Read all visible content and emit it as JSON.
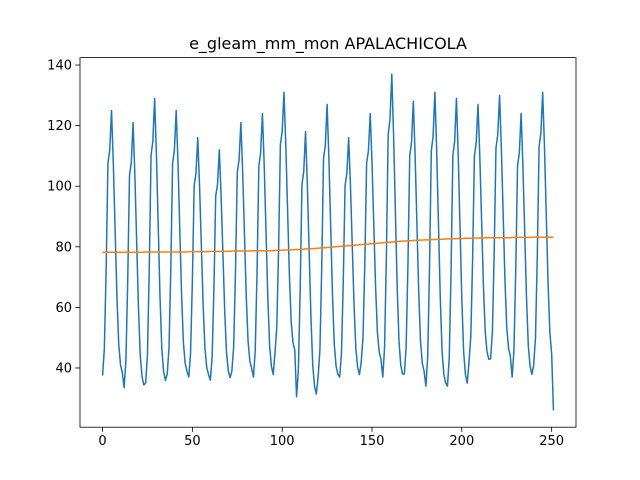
{
  "chart_data": {
    "type": "line",
    "title": "e_gleam_mm_mon APALACHICOLA",
    "x": [
      0,
      1,
      2,
      3,
      4,
      5,
      6,
      7,
      8,
      9,
      10,
      11,
      12,
      13,
      14,
      15,
      16,
      17,
      18,
      19,
      20,
      21,
      22,
      23,
      24,
      25,
      26,
      27,
      28,
      29,
      30,
      31,
      32,
      33,
      34,
      35,
      36,
      37,
      38,
      39,
      40,
      41,
      42,
      43,
      44,
      45,
      46,
      47,
      48,
      49,
      50,
      51,
      52,
      53,
      54,
      55,
      56,
      57,
      58,
      59,
      60,
      61,
      62,
      63,
      64,
      65,
      66,
      67,
      68,
      69,
      70,
      71,
      72,
      73,
      74,
      75,
      76,
      77,
      78,
      79,
      80,
      81,
      82,
      83,
      84,
      85,
      86,
      87,
      88,
      89,
      90,
      91,
      92,
      93,
      94,
      95,
      96,
      97,
      98,
      99,
      100,
      101,
      102,
      103,
      104,
      105,
      106,
      107,
      108,
      109,
      110,
      111,
      112,
      113,
      114,
      115,
      116,
      117,
      118,
      119,
      120,
      121,
      122,
      123,
      124,
      125,
      126,
      127,
      128,
      129,
      130,
      131,
      132,
      133,
      134,
      135,
      136,
      137,
      138,
      139,
      140,
      141,
      142,
      143,
      144,
      145,
      146,
      147,
      148,
      149,
      150,
      151,
      152,
      153,
      154,
      155,
      156,
      157,
      158,
      159,
      160,
      161,
      162,
      163,
      164,
      165,
      166,
      167,
      168,
      169,
      170,
      171,
      172,
      173,
      174,
      175,
      176,
      177,
      178,
      179,
      180,
      181,
      182,
      183,
      184,
      185,
      186,
      187,
      188,
      189,
      190,
      191,
      192,
      193,
      194,
      195,
      196,
      197,
      198,
      199,
      200,
      201,
      202,
      203,
      204,
      205,
      206,
      207,
      208,
      209,
      210,
      211,
      212,
      213,
      214,
      215,
      216,
      217,
      218,
      219,
      220,
      221,
      222,
      223,
      224,
      225,
      226,
      227,
      228,
      229,
      230,
      231,
      232,
      233,
      234,
      235,
      236,
      237,
      238,
      239,
      240,
      241,
      242,
      243,
      244,
      245,
      246,
      247,
      248,
      249,
      250,
      251
    ],
    "series": [
      {
        "color": "#1f77b4",
        "values": [
          37.5,
          46.3,
          72.5,
          107.5,
          111.9,
          125,
          107.5,
          85.6,
          63.8,
          48.0,
          41.0,
          38.4,
          33.5,
          42.3,
          68.5,
          103.5,
          107.9,
          121,
          103.5,
          81.6,
          59.8,
          44.0,
          37.0,
          34.4,
          35,
          44.4,
          72.6,
          110.2,
          114.9,
          129,
          110.2,
          86.7,
          63.2,
          46.3,
          38.8,
          35.9,
          38,
          46.7,
          72.8,
          107.6,
          112,
          125,
          107.6,
          85.9,
          64.1,
          48.4,
          41.5,
          38.9,
          37,
          44.9,
          68.6,
          100.2,
          104.2,
          116,
          100.2,
          80.5,
          60.7,
          46.5,
          40.2,
          37.8,
          36,
          43.6,
          66.4,
          96.8,
          100.6,
          112,
          96.8,
          77.8,
          58.8,
          45.1,
          39.0,
          36.8,
          39,
          47.2,
          71.8,
          104.6,
          108.7,
          121,
          104.6,
          84.1,
          63.6,
          48.8,
          42.3,
          39.8,
          37,
          45.7,
          71.8,
          106.6,
          111,
          124,
          106.6,
          84.9,
          63.1,
          47.4,
          40.5,
          37.9,
          45,
          53.6,
          79.4,
          113.8,
          118.1,
          131,
          113.8,
          92.3,
          70.8,
          55.3,
          48.4,
          45.9,
          30.5,
          39.3,
          65.5,
          100.5,
          104.9,
          118,
          100.5,
          78.6,
          56.8,
          41,
          34,
          31.4,
          37,
          46,
          73,
          109,
          113.5,
          127,
          109,
          86.5,
          64,
          47.8,
          40.6,
          37.9,
          37,
          44.9,
          68.6,
          100.2,
          104.2,
          116,
          100.2,
          80.5,
          60.7,
          46.5,
          40.2,
          37.8,
          42,
          50.2,
          74.8,
          107.6,
          111.7,
          124,
          107.6,
          87.1,
          66.6,
          51.8,
          45.3,
          42.8,
          37,
          47,
          77,
          117,
          122,
          137,
          117,
          92,
          67,
          49,
          41,
          38,
          38,
          47,
          74,
          110,
          114.5,
          128,
          110,
          87.5,
          65,
          48.8,
          41.6,
          38.9,
          34,
          43.7,
          72.8,
          111.6,
          116.5,
          131,
          111.6,
          87.4,
          63.1,
          45.6,
          37.9,
          35,
          34,
          43.5,
          72,
          110,
          114.8,
          129,
          110,
          86.3,
          62.5,
          45.4,
          37.8,
          35,
          42,
          50.5,
          76,
          110,
          114.3,
          127,
          110,
          88.8,
          67.5,
          52.2,
          45.4,
          42.9,
          43,
          51.7,
          77.8,
          112.6,
          117,
          130,
          112.6,
          90.9,
          69.1,
          53.4,
          46.5,
          43.9,
          37,
          45.7,
          71.8,
          106.6,
          111,
          124,
          106.6,
          84.9,
          63.1,
          47.4,
          40.5,
          37.9,
          41,
          50,
          77,
          113,
          117.5,
          131,
          113,
          90.5,
          68,
          51.8,
          44.6,
          26
        ]
      },
      {
        "color": "#ff7f0e",
        "values": [
          78.2,
          78.2,
          78.2,
          78.2,
          78.2,
          78.2,
          78.2,
          78.2,
          78.2,
          78.2,
          78.2,
          78.2,
          78.2,
          78.2,
          78.2,
          78.2,
          78.2,
          78.2,
          78.2,
          78.2,
          78.2,
          78.2,
          78.2,
          78.2,
          78.3,
          78.3,
          78.3,
          78.3,
          78.3,
          78.3,
          78.3,
          78.3,
          78.3,
          78.3,
          78.3,
          78.3,
          78.3,
          78.3,
          78.3,
          78.3,
          78.3,
          78.3,
          78.3,
          78.3,
          78.3,
          78.3,
          78.3,
          78.3,
          78.4,
          78.4,
          78.4,
          78.4,
          78.4,
          78.4,
          78.4,
          78.4,
          78.4,
          78.4,
          78.4,
          78.4,
          78.5,
          78.5,
          78.5,
          78.5,
          78.5,
          78.5,
          78.5,
          78.5,
          78.5,
          78.5,
          78.5,
          78.5,
          78.6,
          78.6,
          78.6,
          78.6,
          78.6,
          78.6,
          78.6,
          78.6,
          78.6,
          78.6,
          78.6,
          78.6,
          78.7,
          78.7,
          78.7,
          78.7,
          78.7,
          78.7,
          78.7,
          78.7,
          78.7,
          78.7,
          78.7,
          78.7,
          78.8,
          78.8,
          78.8,
          78.9,
          78.9,
          78.9,
          78.9,
          79.0,
          79.0,
          79.0,
          79.0,
          79.1,
          79.1,
          79.1,
          79.2,
          79.2,
          79.2,
          79.3,
          79.3,
          79.3,
          79.4,
          79.4,
          79.4,
          79.5,
          79.5,
          79.6,
          79.6,
          79.7,
          79.7,
          79.8,
          79.8,
          79.9,
          79.9,
          80.0,
          80.0,
          80.1,
          80.1,
          80.2,
          80.2,
          80.3,
          80.3,
          80.4,
          80.4,
          80.5,
          80.5,
          80.6,
          80.6,
          80.7,
          80.7,
          80.8,
          80.8,
          80.9,
          80.9,
          81.0,
          81.0,
          81.1,
          81.1,
          81.2,
          81.2,
          81.3,
          81.3,
          81.4,
          81.4,
          81.5,
          81.5,
          81.6,
          81.6,
          81.7,
          81.7,
          81.8,
          81.8,
          81.9,
          81.9,
          81.9,
          82.0,
          82.0,
          82.0,
          82.1,
          82.1,
          82.1,
          82.2,
          82.2,
          82.2,
          82.3,
          82.3,
          82.3,
          82.3,
          82.4,
          82.4,
          82.4,
          82.4,
          82.5,
          82.5,
          82.5,
          82.5,
          82.6,
          82.6,
          82.6,
          82.6,
          82.6,
          82.7,
          82.7,
          82.7,
          82.7,
          82.7,
          82.8,
          82.8,
          82.8,
          82.8,
          82.8,
          82.8,
          82.9,
          82.9,
          82.9,
          82.9,
          82.9,
          82.9,
          83.0,
          83.0,
          83.0,
          83.0,
          83.0,
          83.0,
          83.0,
          83.0,
          83.0,
          83.0,
          83.0,
          83.0,
          83.0,
          83.0,
          83.0,
          83.1,
          83.1,
          83.1,
          83.1,
          83.1,
          83.1,
          83.1,
          83.1,
          83.1,
          83.1,
          83.1,
          83.1,
          83.2,
          83.2,
          83.2,
          83.2,
          83.2,
          83.2,
          83.2,
          83.2,
          83.2,
          83.2,
          83.2,
          83.2
        ]
      }
    ],
    "xlim": [
      -12.55,
      263.55
    ],
    "xticks": [
      0,
      50,
      100,
      150,
      200,
      250
    ],
    "ylim": [
      20.45,
      142.45
    ],
    "yticks": [
      40,
      60,
      80,
      100,
      120,
      140
    ]
  }
}
